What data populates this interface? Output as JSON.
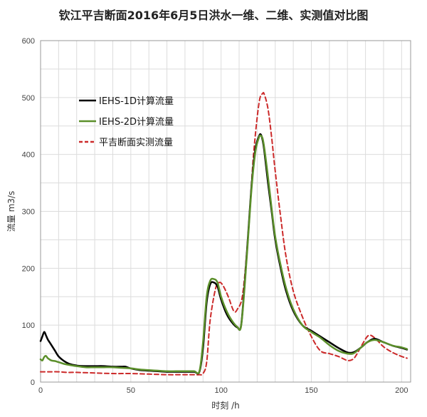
{
  "chart_data": {
    "type": "line",
    "title": "钦江平吉断面2016年6月5日洪水一维、二维、实测值对比图",
    "xlabel": "时刻 /h",
    "ylabel": "流量 m3/s",
    "xlim": [
      0,
      205
    ],
    "ylim": [
      0,
      600
    ],
    "x_ticks": [
      0,
      50,
      100,
      150,
      200
    ],
    "y_ticks": [
      0,
      100,
      200,
      300,
      400,
      500,
      600
    ],
    "grid": true,
    "legend_position": "top-left",
    "series": [
      {
        "name": "IEHS-1D计算流量",
        "color": "#000000",
        "style": "solid",
        "x": [
          0,
          1,
          2,
          3,
          4,
          6,
          8,
          10,
          13,
          16,
          20,
          25,
          30,
          35,
          40,
          45,
          47,
          50,
          55,
          60,
          65,
          70,
          75,
          80,
          85,
          88,
          90,
          92,
          94,
          96,
          98,
          100,
          103,
          106,
          109,
          111,
          113,
          115,
          117,
          119,
          121,
          122,
          123,
          124,
          126,
          128,
          130,
          133,
          136,
          140,
          145,
          150,
          155,
          160,
          165,
          170,
          173,
          175,
          178,
          181,
          185,
          190,
          195,
          200,
          203
        ],
        "y": [
          72,
          80,
          88,
          82,
          75,
          65,
          55,
          45,
          37,
          32,
          29,
          28,
          28,
          28,
          27,
          27,
          27,
          24,
          21,
          20,
          19,
          18,
          18,
          18,
          18,
          18,
          60,
          140,
          172,
          175,
          168,
          145,
          120,
          105,
          96,
          98,
          170,
          260,
          350,
          410,
          432,
          435,
          425,
          405,
          350,
          300,
          250,
          200,
          160,
          125,
          100,
          90,
          80,
          70,
          60,
          52,
          52,
          55,
          62,
          70,
          76,
          70,
          64,
          60,
          57
        ]
      },
      {
        "name": "IEHS-2D计算流量",
        "color": "#5b8f2a",
        "style": "solid",
        "x": [
          0,
          1,
          2,
          3,
          4,
          6,
          8,
          10,
          13,
          16,
          20,
          25,
          30,
          35,
          40,
          45,
          50,
          55,
          60,
          65,
          70,
          75,
          80,
          85,
          88,
          90,
          92,
          94,
          96,
          98,
          100,
          103,
          106,
          109,
          111,
          113,
          115,
          117,
          119,
          121,
          122,
          123,
          124,
          126,
          128,
          130,
          133,
          136,
          140,
          145,
          150,
          155,
          160,
          165,
          170,
          173,
          175,
          178,
          181,
          185,
          190,
          195,
          200,
          203
        ],
        "y": [
          40,
          38,
          44,
          46,
          42,
          38,
          37,
          35,
          32,
          30,
          28,
          26,
          26,
          26,
          26,
          25,
          24,
          22,
          21,
          20,
          19,
          19,
          19,
          19,
          19,
          70,
          150,
          178,
          181,
          175,
          150,
          125,
          108,
          97,
          97,
          165,
          255,
          345,
          405,
          430,
          433,
          428,
          410,
          360,
          305,
          255,
          205,
          165,
          128,
          100,
          88,
          78,
          65,
          55,
          50,
          50,
          54,
          62,
          70,
          74,
          70,
          64,
          61,
          58
        ]
      },
      {
        "name": "平吉断面实测流量",
        "color": "#cc2a2a",
        "style": "dashed",
        "x": [
          0,
          5,
          10,
          15,
          20,
          30,
          40,
          50,
          60,
          70,
          80,
          85,
          88,
          90,
          92,
          94,
          97,
          99,
          101,
          104,
          107,
          109,
          112,
          115,
          118,
          121,
          123,
          124,
          126,
          128,
          130,
          133,
          136,
          140,
          145,
          150,
          155,
          160,
          165,
          170,
          173,
          175,
          178,
          181,
          183,
          186,
          190,
          195,
          200,
          203
        ],
        "y": [
          18,
          18,
          18,
          17,
          17,
          16,
          15,
          15,
          14,
          13,
          13,
          13,
          13,
          15,
          35,
          110,
          165,
          175,
          170,
          150,
          125,
          128,
          155,
          260,
          400,
          490,
          507,
          505,
          480,
          430,
          370,
          290,
          220,
          160,
          115,
          80,
          55,
          50,
          45,
          38,
          40,
          48,
          65,
          80,
          82,
          75,
          62,
          52,
          45,
          42
        ]
      }
    ]
  }
}
